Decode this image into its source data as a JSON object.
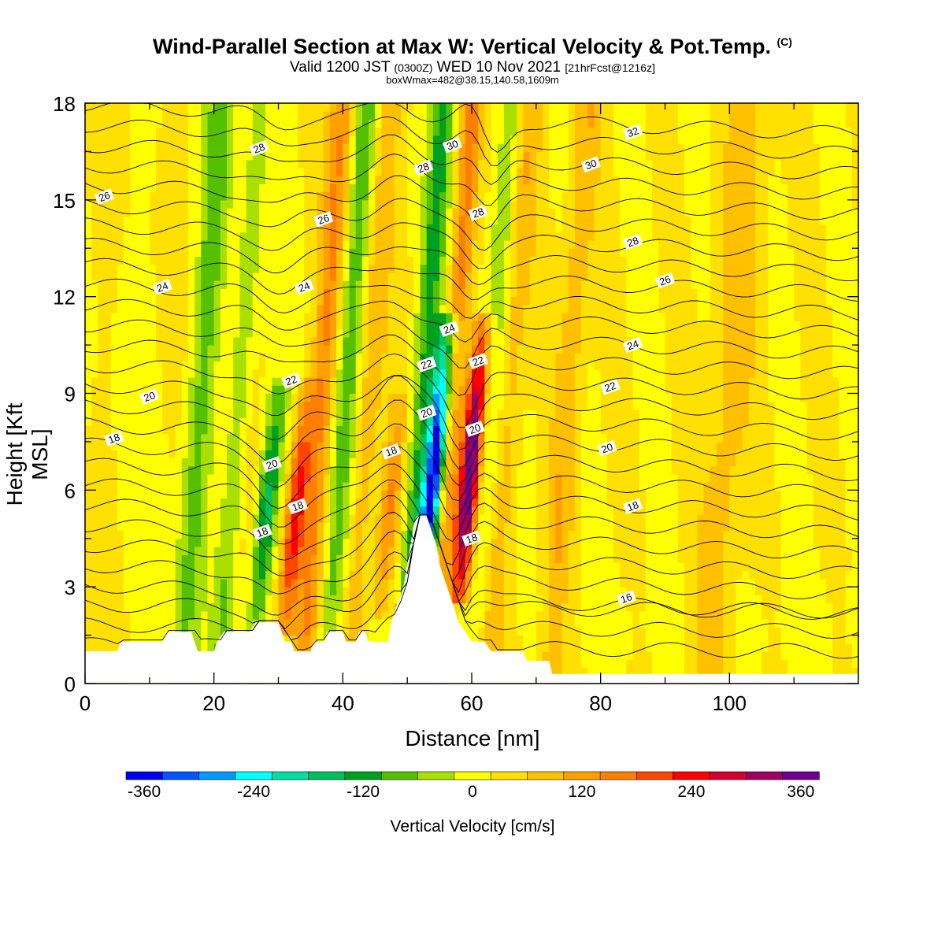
{
  "title": {
    "main": "Wind-Parallel Section at Max W: Vertical Velocity & Pot.Temp.",
    "copyright": "(C)",
    "valid_prefix": "Valid 1200 JST",
    "valid_z": "(0300Z)",
    "valid_date": "WED 10 Nov 2021",
    "forecast": "[21hrFcst@1216z]",
    "box": "boxWmax=482@38.15,140.58,1609m"
  },
  "chart_data": {
    "type": "heatmap",
    "xlabel": "Distance [nm]",
    "ylabel": "Height [Kft MSL]",
    "xlim": [
      0,
      120
    ],
    "ylim": [
      0,
      18
    ],
    "x_ticks": [
      "0",
      "20",
      "40",
      "60",
      "80",
      "100"
    ],
    "y_ticks": [
      "0",
      "3",
      "6",
      "9",
      "12",
      "15",
      "18"
    ],
    "field": "Vertical Velocity [cm/s]",
    "colorbar": {
      "label": "Vertical Velocity [cm/s]",
      "levels": [
        -360,
        -300,
        -240,
        -180,
        -120,
        -60,
        0,
        60,
        120,
        180,
        240,
        300,
        360
      ],
      "tick_labels": [
        "-360",
        "-240",
        "-120",
        "0",
        "120",
        "240",
        "360"
      ],
      "colors": [
        "#0000ee",
        "#0055ff",
        "#0099ff",
        "#00ffff",
        "#00e0a0",
        "#00c060",
        "#00a020",
        "#55c000",
        "#aae000",
        "#ffff00",
        "#ffe000",
        "#ffc000",
        "#ffa000",
        "#ff7f00",
        "#ff4500",
        "#ff0000",
        "#d40030",
        "#a00060",
        "#700090"
      ]
    },
    "velocity_features": [
      {
        "x": 54,
        "zmin": 3.0,
        "zmax": 10.5,
        "w": -400
      },
      {
        "x": 59.5,
        "zmin": 3.0,
        "zmax": 10.5,
        "w": 360
      },
      {
        "x": 28.5,
        "zmin": 2.0,
        "zmax": 8.5,
        "w": -180
      },
      {
        "x": 33,
        "zmin": 2.0,
        "zmax": 8.5,
        "w": 220
      },
      {
        "x": 47.5,
        "zmin": 2.5,
        "zmax": 8.0,
        "w": 120
      }
    ],
    "terrain": [
      [
        0,
        1.0
      ],
      [
        5,
        1.0
      ],
      [
        5.5,
        1.3
      ],
      [
        12,
        1.3
      ],
      [
        12.5,
        1.6
      ],
      [
        16.5,
        1.6
      ],
      [
        17,
        1.3
      ],
      [
        17.5,
        1.0
      ],
      [
        20,
        1.0
      ],
      [
        20.5,
        1.3
      ],
      [
        21.5,
        1.6
      ],
      [
        22,
        1.6
      ],
      [
        25.5,
        1.6
      ],
      [
        26.5,
        1.9
      ],
      [
        30,
        1.9
      ],
      [
        30.5,
        1.6
      ],
      [
        31,
        1.3
      ],
      [
        32,
        1.3
      ],
      [
        32.5,
        1.0
      ],
      [
        35,
        1.0
      ],
      [
        35.5,
        1.3
      ],
      [
        37,
        1.3
      ],
      [
        37.5,
        1.6
      ],
      [
        40,
        1.6
      ],
      [
        40.5,
        1.3
      ],
      [
        42,
        1.3
      ],
      [
        42.5,
        1.6
      ],
      [
        43.5,
        1.6
      ],
      [
        44,
        1.3
      ],
      [
        47,
        1.3
      ],
      [
        47.5,
        1.9
      ],
      [
        48.5,
        2.5
      ],
      [
        49,
        2.7
      ],
      [
        49.5,
        3.1
      ],
      [
        50,
        3.7
      ],
      [
        50.5,
        4.3
      ],
      [
        51,
        4.9
      ],
      [
        51.5,
        5.2
      ],
      [
        53,
        5.2
      ],
      [
        53.5,
        4.9
      ],
      [
        54.5,
        4.3
      ],
      [
        55,
        3.7
      ],
      [
        56,
        3.1
      ],
      [
        57,
        2.5
      ],
      [
        58,
        1.9
      ],
      [
        59,
        1.6
      ],
      [
        60,
        1.3
      ],
      [
        62,
        1.3
      ],
      [
        63,
        1.0
      ],
      [
        68,
        1.0
      ],
      [
        68.5,
        0.7
      ],
      [
        72,
        0.7
      ],
      [
        72.5,
        0.3
      ],
      [
        118,
        0.3
      ]
    ],
    "isentropes": {
      "units": "C",
      "labels": [
        {
          "text": "16",
          "x": 84,
          "z": 2.65
        },
        {
          "text": "18",
          "x": 4.5,
          "z": 7.6
        },
        {
          "text": "18",
          "x": 27.5,
          "z": 4.7
        },
        {
          "text": "18",
          "x": 33,
          "z": 5.5
        },
        {
          "text": "18",
          "x": 47.5,
          "z": 7.2
        },
        {
          "text": "18",
          "x": 60,
          "z": 4.5
        },
        {
          "text": "18",
          "x": 85,
          "z": 5.5
        },
        {
          "text": "20",
          "x": 10,
          "z": 8.9
        },
        {
          "text": "20",
          "x": 29,
          "z": 6.8
        },
        {
          "text": "20",
          "x": 53,
          "z": 8.4
        },
        {
          "text": "20",
          "x": 60.5,
          "z": 7.9
        },
        {
          "text": "20",
          "x": 81,
          "z": 7.3
        },
        {
          "text": "22",
          "x": 32,
          "z": 9.4
        },
        {
          "text": "22",
          "x": 53,
          "z": 9.9
        },
        {
          "text": "22",
          "x": 61,
          "z": 10.0
        },
        {
          "text": "22",
          "x": 81.5,
          "z": 9.2
        },
        {
          "text": "24",
          "x": 12,
          "z": 12.3
        },
        {
          "text": "24",
          "x": 34,
          "z": 12.3
        },
        {
          "text": "24",
          "x": 56.5,
          "z": 11.0
        },
        {
          "text": "24",
          "x": 85,
          "z": 10.5
        },
        {
          "text": "26",
          "x": 3,
          "z": 15.1
        },
        {
          "text": "26",
          "x": 37,
          "z": 14.4
        },
        {
          "text": "26",
          "x": 90,
          "z": 12.5
        },
        {
          "text": "28",
          "x": 27,
          "z": 16.6
        },
        {
          "text": "28",
          "x": 52.5,
          "z": 16.0
        },
        {
          "text": "28",
          "x": 61,
          "z": 14.6
        },
        {
          "text": "28",
          "x": 85,
          "z": 13.7
        },
        {
          "text": "30",
          "x": 57,
          "z": 16.7
        },
        {
          "text": "30",
          "x": 78.5,
          "z": 16.1
        },
        {
          "text": "32",
          "x": 85,
          "z": 17.1
        }
      ]
    }
  }
}
